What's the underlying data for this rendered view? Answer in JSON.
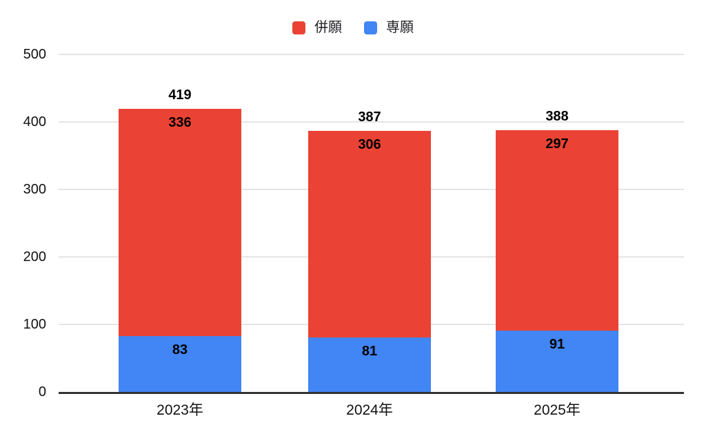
{
  "chart_data": {
    "type": "bar",
    "stacked": true,
    "title": "",
    "categories": [
      "2023年",
      "2024年",
      "2025年"
    ],
    "series": [
      {
        "name": "併願",
        "color": "#EA4335",
        "values": [
          336,
          306,
          297
        ]
      },
      {
        "name": "専願",
        "color": "#4285F4",
        "values": [
          83,
          81,
          91
        ]
      }
    ],
    "stack_bottom_to_top": [
      "専願",
      "併願"
    ],
    "totals": [
      419,
      387,
      388
    ],
    "ylim": [
      0,
      500
    ],
    "yticks": [
      0,
      100,
      200,
      300,
      400,
      500
    ],
    "grid": true,
    "legend_position": "top",
    "colors": {
      "gridline": "#e4e4e4",
      "axis_line": "#333333",
      "label_text": "#000000",
      "tick_text": "#111111"
    }
  }
}
